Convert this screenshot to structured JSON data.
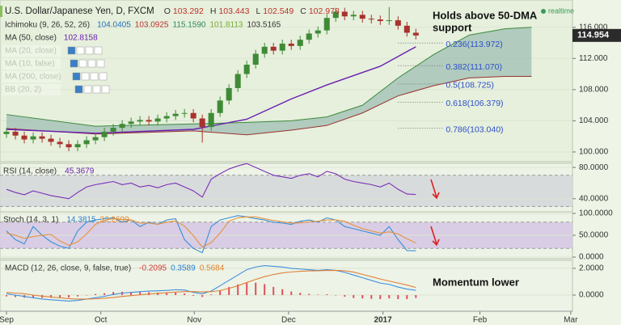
{
  "chart_data": [
    {
      "type": "candlestick",
      "title": "U.S. Dollar/Japanese Yen, D, FXCM",
      "ohlc": [
        {
          "label": "O",
          "value": 103.292
        },
        {
          "label": "H",
          "value": 103.443
        },
        {
          "label": "L",
          "value": 102.549
        },
        {
          "label": "C",
          "value": 102.978
        }
      ],
      "indicators": [
        {
          "name": "Ichimoku (9, 26, 52, 26)",
          "readouts": [
            "104.0405",
            "103.0925",
            "115.1590",
            "101.8113",
            "103.5165"
          ],
          "colors": [
            "#2a6fb8",
            "#b33",
            "#2e8b57",
            "#7a3",
            "#333"
          ]
        },
        {
          "name": "MA (50, close)",
          "readouts": [
            "102.8158"
          ],
          "colors": [
            "#6a1fb0"
          ]
        },
        {
          "name": "MA (20, close)",
          "readouts": [],
          "colors": [],
          "hidden": true
        },
        {
          "name": "MA (10, false)",
          "readouts": [],
          "colors": [],
          "hidden": true
        },
        {
          "name": "MA (200, close)",
          "readouts": [],
          "colors": [],
          "hidden": true
        },
        {
          "name": "BB (20, 2)",
          "readouts": [],
          "colors": [],
          "hidden": true
        }
      ],
      "open": [
        102.3,
        102.6,
        102.1,
        101.6,
        102.0,
        101.7,
        101.3,
        101.0,
        100.6,
        101.0,
        101.5,
        101.9,
        102.6,
        103.1,
        103.6,
        103.9,
        104.1,
        103.9,
        104.3,
        104.6,
        104.9,
        105.0,
        104.3,
        103.2,
        105.0,
        106.6,
        108.2,
        110.0,
        111.2,
        112.6,
        113.5,
        113.0,
        113.9,
        113.6,
        114.4,
        115.2,
        115.6,
        117.2,
        118.0,
        117.4,
        117.6,
        117.1,
        117.0,
        116.8,
        116.9,
        116.2,
        115.3
      ],
      "high": [
        103.1,
        103.1,
        102.6,
        102.5,
        102.5,
        102.2,
        101.8,
        101.5,
        101.5,
        102.0,
        102.4,
        103.1,
        103.6,
        104.1,
        104.4,
        104.6,
        104.6,
        104.8,
        105.1,
        105.4,
        105.5,
        105.5,
        104.8,
        105.5,
        107.1,
        108.7,
        110.5,
        111.7,
        113.1,
        114.0,
        114.0,
        114.4,
        114.4,
        114.9,
        115.7,
        116.1,
        117.7,
        118.5,
        118.5,
        118.1,
        118.1,
        117.6,
        117.5,
        118.6,
        117.4,
        116.7,
        115.8
      ],
      "low": [
        101.8,
        101.6,
        101.1,
        101.1,
        101.2,
        100.8,
        100.5,
        100.1,
        100.1,
        100.5,
        101.0,
        101.4,
        102.1,
        102.6,
        103.1,
        103.4,
        103.4,
        103.4,
        103.8,
        104.1,
        104.4,
        103.8,
        101.2,
        102.7,
        104.5,
        106.1,
        107.7,
        109.5,
        110.7,
        112.1,
        112.5,
        112.5,
        113.1,
        113.1,
        113.9,
        114.7,
        115.1,
        116.7,
        116.9,
        116.9,
        116.6,
        116.5,
        116.3,
        116.3,
        115.7,
        114.8,
        114.45
      ],
      "close": [
        102.6,
        102.1,
        101.6,
        102.0,
        101.7,
        101.3,
        101.0,
        100.6,
        101.0,
        101.5,
        101.9,
        102.6,
        103.1,
        103.6,
        103.9,
        104.1,
        103.9,
        104.3,
        104.6,
        104.9,
        105.0,
        104.3,
        103.2,
        105.0,
        106.6,
        108.2,
        110.0,
        111.2,
        112.6,
        113.5,
        113.0,
        113.9,
        113.6,
        114.4,
        115.2,
        115.6,
        117.2,
        118.0,
        117.4,
        117.6,
        117.1,
        117.0,
        116.8,
        116.9,
        116.2,
        115.3,
        114.95
      ],
      "up_color": "#3f8a36",
      "down_color": "#a8322d",
      "ma": {
        "color": "#6a1fb0",
        "x": [
          0,
          10,
          21,
          27,
          32,
          36,
          42,
          46
        ],
        "values": [
          102.9,
          102.4,
          102.9,
          104.2,
          106.8,
          108.6,
          111.0,
          113.5
        ]
      },
      "cloud": {
        "color": "#9fbfb4",
        "upper_color": "#3d8a3d",
        "lower_color": "#9a3030",
        "x": [
          0,
          10,
          21,
          27,
          32,
          36,
          40,
          44,
          48,
          52,
          56,
          59
        ],
        "upper": [
          104.8,
          103.3,
          103.6,
          103.8,
          104.0,
          104.5,
          106.0,
          109.5,
          112.5,
          115.0,
          115.8,
          116.0
        ],
        "lower": [
          103.0,
          102.3,
          102.7,
          102.2,
          102.8,
          103.4,
          105.0,
          107.2,
          108.5,
          109.5,
          109.7,
          109.7
        ]
      },
      "fib_levels": [
        {
          "value": 113.972,
          "label": "0.236(113.972)"
        },
        {
          "value": 111.07,
          "label": "0.382(111.070)"
        },
        {
          "value": 108.725,
          "label": "0.5(108.725)"
        },
        {
          "value": 106.379,
          "label": "0.618(106.379)"
        },
        {
          "value": 103.04,
          "label": "0.786(103.040)"
        }
      ],
      "last_price": 114.954,
      "annotation": [
        "Holds above 50-DMA",
        "support"
      ],
      "status": "realtime",
      "ylim": [
        98.75,
        119.5
      ],
      "yticks": [
        {
          "value": 100,
          "label": "100.000"
        },
        {
          "value": 104,
          "label": "104.000"
        },
        {
          "value": 108,
          "label": "108.000"
        },
        {
          "value": 112,
          "label": "112.000"
        },
        {
          "value": 116,
          "label": "116.000"
        }
      ],
      "xlim": [
        -0.73,
        63.6
      ],
      "xticks": [
        {
          "value": 0,
          "label": "Sep"
        },
        {
          "value": 10.6,
          "label": "Oct"
        },
        {
          "value": 21.1,
          "label": "Nov"
        },
        {
          "value": 31.7,
          "label": "Dec"
        },
        {
          "value": 42.3,
          "label": "2017"
        },
        {
          "value": 53.2,
          "label": "Feb"
        },
        {
          "value": 63.4,
          "label": "Mar"
        }
      ]
    },
    {
      "type": "line",
      "title": "RSI (14, close)",
      "readouts": [
        "45.3679"
      ],
      "readout_colors": [
        "#6a1fb0"
      ],
      "bands": [
        70,
        30
      ],
      "band_color": "#d3d6d8",
      "series": [
        {
          "color": "#7a2fb8",
          "values": [
            52,
            48,
            45,
            50,
            47,
            44,
            42,
            40,
            48,
            55,
            58,
            60,
            62,
            58,
            60,
            55,
            57,
            54,
            58,
            60,
            55,
            50,
            42,
            65,
            72,
            78,
            82,
            85,
            80,
            75,
            70,
            68,
            66,
            70,
            72,
            68,
            75,
            72,
            65,
            62,
            60,
            58,
            55,
            60,
            52,
            46,
            45.3679
          ]
        }
      ],
      "ylim": [
        23.2,
        85.3
      ],
      "yticks": [
        {
          "value": 80,
          "label": "80.0000"
        },
        {
          "value": 40,
          "label": "40.0000"
        }
      ]
    },
    {
      "type": "line",
      "title": "Stoch (14, 3, 1)",
      "readouts": [
        "14.3815",
        "32.2699"
      ],
      "readout_colors": [
        "#2a7fd0",
        "#e0832e"
      ],
      "bands": [
        80,
        20
      ],
      "band_color": "#d4c6e3",
      "series": [
        {
          "color": "#3a8fd9",
          "values": [
            60,
            40,
            30,
            70,
            50,
            35,
            25,
            20,
            60,
            80,
            85,
            88,
            90,
            80,
            85,
            70,
            80,
            75,
            85,
            88,
            40,
            20,
            10,
            70,
            85,
            90,
            95,
            92,
            88,
            85,
            80,
            78,
            75,
            82,
            85,
            80,
            90,
            85,
            70,
            65,
            60,
            55,
            50,
            70,
            40,
            15,
            14.3815
          ]
        },
        {
          "color": "#e8913a",
          "values": [
            55,
            50,
            43,
            47,
            50,
            52,
            37,
            27,
            35,
            53,
            75,
            84,
            88,
            86,
            85,
            78,
            78,
            75,
            80,
            83,
            71,
            49,
            23,
            33,
            55,
            82,
            90,
            92,
            92,
            88,
            84,
            81,
            78,
            78,
            81,
            82,
            85,
            85,
            82,
            73,
            65,
            60,
            55,
            58,
            53,
            42,
            32.2699
          ]
        }
      ],
      "ylim": [
        -3.7,
        103.7
      ],
      "yticks": [
        {
          "value": 100,
          "label": "100.0000"
        },
        {
          "value": 50,
          "label": "50.0000"
        },
        {
          "value": 0,
          "label": "0.0000"
        }
      ]
    },
    {
      "type": "line",
      "title": "MACD (12, 26, close, 9, false, true)",
      "readouts": [
        "-0.2095",
        "0.3589",
        "0.5684"
      ],
      "readout_colors": [
        "#d23a3a",
        "#2a7fd0",
        "#e0832e"
      ],
      "annotation": "Momentum lower",
      "series": [
        {
          "style": "bar",
          "color": "#e0505a",
          "values": [
            -0.1,
            -0.15,
            -0.2,
            -0.2,
            -0.22,
            -0.2,
            -0.2,
            -0.18,
            -0.1,
            0,
            0.08,
            0.14,
            0.23,
            0.25,
            0.24,
            0.23,
            0.22,
            0.19,
            0.17,
            0.18,
            0.12,
            -0.06,
            -0.14,
            0.05,
            0.36,
            0.6,
            0.8,
            0.96,
            0.93,
            0.82,
            0.61,
            0.44,
            0.27,
            0.17,
            0.09,
            0.03,
            0.06,
            0,
            -0.12,
            -0.22,
            -0.25,
            -0.28,
            -0.3,
            -0.25,
            -0.3,
            -0.3,
            -0.2095
          ]
        },
        {
          "color": "#3d8fe0",
          "values": [
            0.1,
            0,
            -0.1,
            -0.2,
            -0.3,
            -0.35,
            -0.4,
            -0.45,
            -0.4,
            -0.3,
            -0.2,
            -0.1,
            0.05,
            0.15,
            0.2,
            0.25,
            0.3,
            0.32,
            0.35,
            0.4,
            0.38,
            0.2,
            0.1,
            0.3,
            0.7,
            1.1,
            1.5,
            1.9,
            2.1,
            2.2,
            2.15,
            2.1,
            2.0,
            1.95,
            1.9,
            1.85,
            1.9,
            1.85,
            1.7,
            1.5,
            1.3,
            1.1,
            0.9,
            0.8,
            0.6,
            0.45,
            0.3589
          ]
        },
        {
          "color": "#e0803a",
          "values": [
            0.2,
            0.15,
            0.1,
            0,
            -0.08,
            -0.15,
            -0.2,
            -0.27,
            -0.3,
            -0.3,
            -0.28,
            -0.24,
            -0.18,
            -0.1,
            -0.04,
            0.02,
            0.08,
            0.13,
            0.18,
            0.22,
            0.26,
            0.26,
            0.24,
            0.25,
            0.34,
            0.5,
            0.7,
            0.94,
            1.17,
            1.38,
            1.54,
            1.66,
            1.73,
            1.78,
            1.81,
            1.82,
            1.84,
            1.85,
            1.82,
            1.72,
            1.55,
            1.38,
            1.2,
            1.05,
            0.9,
            0.75,
            0.5684
          ]
        }
      ],
      "ylim": [
        -1.21,
        2.6
      ],
      "yticks": [
        {
          "value": 2,
          "label": "2.0000"
        },
        {
          "value": 0,
          "label": "0.0000"
        }
      ]
    }
  ]
}
